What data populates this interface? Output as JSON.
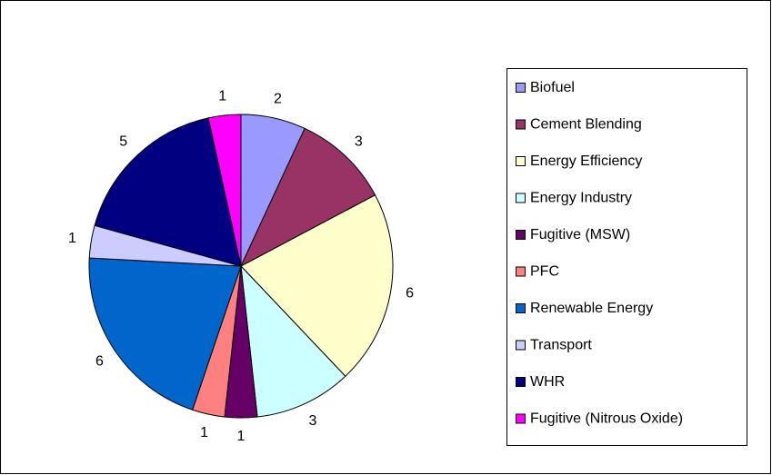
{
  "chart_data": {
    "type": "pie",
    "categories": [
      "Biofuel",
      "Cement Blending",
      "Energy Efficiency",
      "Energy Industry",
      "Fugitive (MSW)",
      "PFC",
      "Renewable Energy",
      "Transport",
      "WHR",
      "Fugitive (Nitrous Oxide)"
    ],
    "values": [
      2,
      3,
      6,
      3,
      1,
      1,
      6,
      1,
      5,
      1
    ],
    "colors": [
      "#9999ff",
      "#993366",
      "#ffffcc",
      "#ccffff",
      "#660066",
      "#ff8080",
      "#0066cc",
      "#ccccff",
      "#000080",
      "#ff00ff"
    ],
    "legend": "right"
  }
}
